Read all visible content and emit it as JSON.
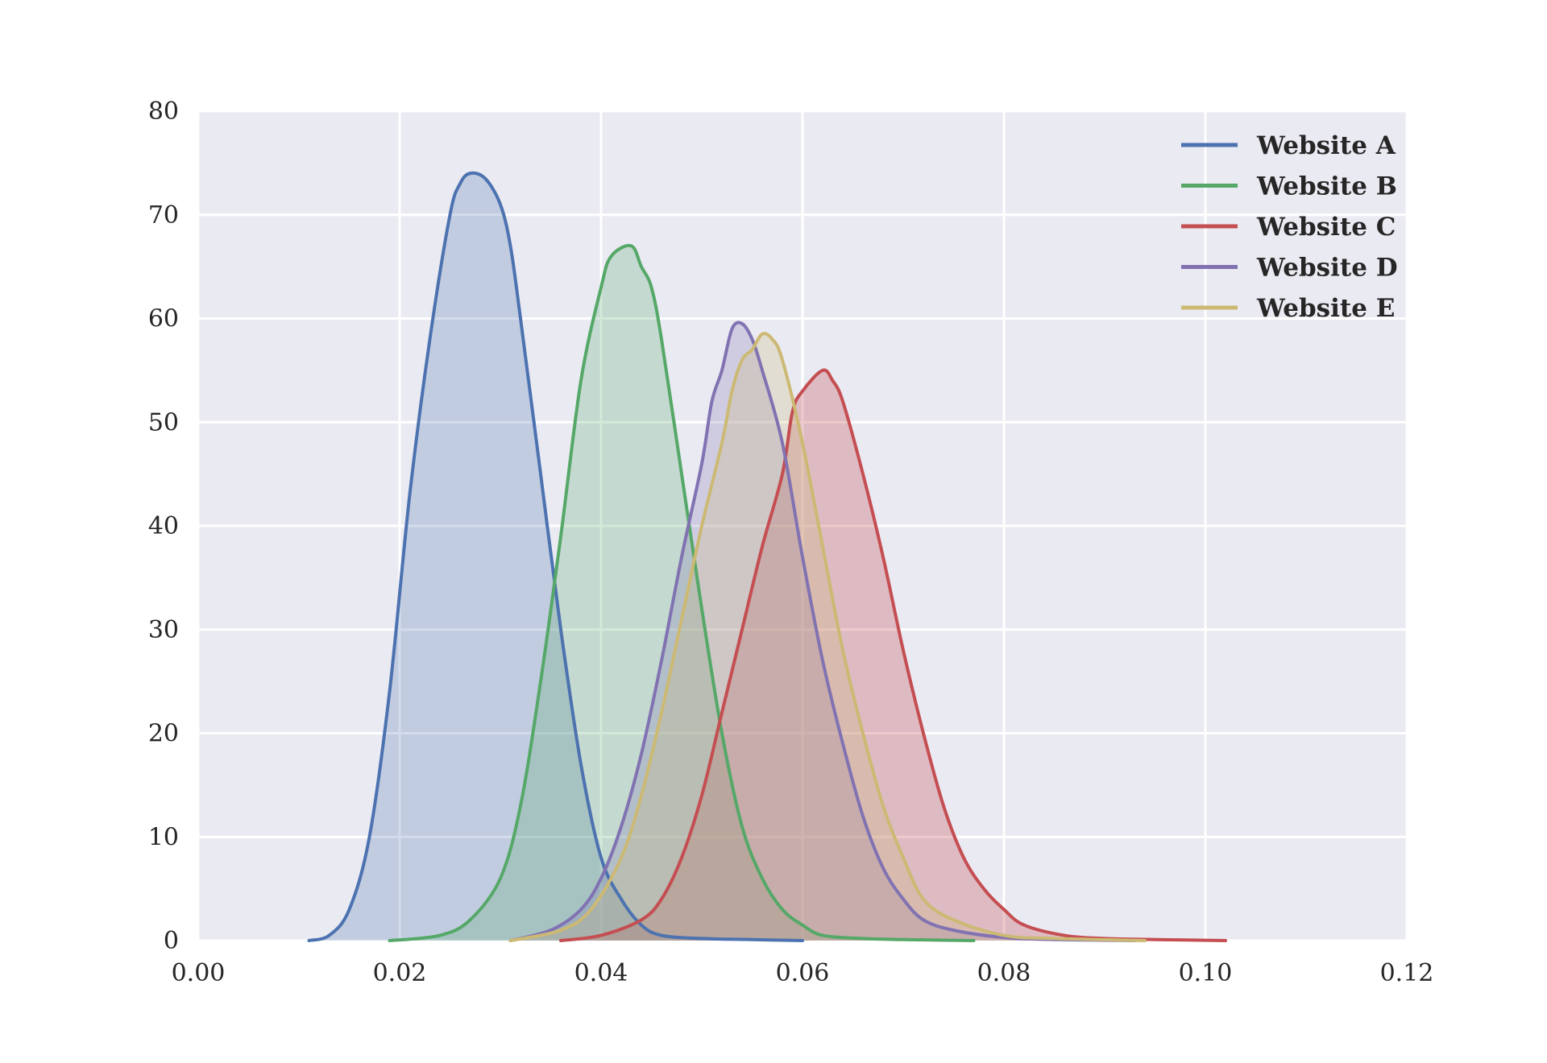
{
  "chart_data": {
    "type": "area",
    "title": "",
    "xlabel": "",
    "ylabel": "",
    "xlim": [
      0.0,
      0.12
    ],
    "ylim": [
      0,
      80
    ],
    "grid": true,
    "style": "seaborn-darkgrid",
    "legend_position": "upper right",
    "x_ticks": [
      "0.00",
      "0.02",
      "0.04",
      "0.06",
      "0.08",
      "0.10",
      "0.12"
    ],
    "y_ticks": [
      "0",
      "10",
      "20",
      "30",
      "40",
      "50",
      "60",
      "70",
      "80"
    ],
    "series": [
      {
        "name": "Website A",
        "color": "#4c72b0",
        "fill": "rgba(76,114,176,0.25)",
        "x": [
          0.011,
          0.013,
          0.015,
          0.017,
          0.019,
          0.021,
          0.023,
          0.025,
          0.026,
          0.027,
          0.0285,
          0.03,
          0.031,
          0.032,
          0.034,
          0.036,
          0.038,
          0.04,
          0.042,
          0.044,
          0.046,
          0.05,
          0.055,
          0.06
        ],
        "y": [
          0,
          0.5,
          3,
          10,
          24,
          43,
          58,
          70,
          73,
          74,
          73.5,
          71,
          67,
          60,
          45,
          30,
          17,
          8,
          4,
          1.5,
          0.5,
          0.2,
          0.1,
          0
        ]
      },
      {
        "name": "Website B",
        "color": "#55a868",
        "fill": "rgba(85,168,104,0.25)",
        "x": [
          0.019,
          0.024,
          0.027,
          0.03,
          0.032,
          0.034,
          0.036,
          0.038,
          0.04,
          0.041,
          0.043,
          0.044,
          0.045,
          0.046,
          0.048,
          0.05,
          0.052,
          0.054,
          0.056,
          0.058,
          0.06,
          0.062,
          0.066,
          0.07,
          0.077
        ],
        "y": [
          0,
          0.5,
          2,
          6,
          13,
          25,
          39,
          54,
          63,
          66,
          67,
          65,
          63,
          58,
          45,
          32,
          20,
          11,
          6,
          3,
          1.5,
          0.5,
          0.2,
          0.1,
          0
        ]
      },
      {
        "name": "Website C",
        "color": "#c44e52",
        "fill": "rgba(196,78,82,0.30)",
        "x": [
          0.036,
          0.04,
          0.044,
          0.046,
          0.048,
          0.05,
          0.052,
          0.054,
          0.056,
          0.058,
          0.059,
          0.06,
          0.062,
          0.063,
          0.064,
          0.066,
          0.068,
          0.07,
          0.072,
          0.074,
          0.076,
          0.078,
          0.08,
          0.082,
          0.086,
          0.09,
          0.095,
          0.102
        ],
        "y": [
          0,
          0.5,
          2,
          4,
          8,
          14,
          22,
          30,
          38,
          45,
          51,
          53,
          55,
          54,
          52,
          45,
          37,
          28,
          20,
          13,
          8,
          5,
          3,
          1.5,
          0.5,
          0.2,
          0.1,
          0
        ]
      },
      {
        "name": "Website D",
        "color": "#8172b2",
        "fill": "rgba(129,114,178,0.25)",
        "x": [
          0.031,
          0.035,
          0.038,
          0.04,
          0.042,
          0.044,
          0.046,
          0.048,
          0.05,
          0.051,
          0.052,
          0.053,
          0.054,
          0.055,
          0.056,
          0.058,
          0.06,
          0.062,
          0.064,
          0.066,
          0.068,
          0.07,
          0.072,
          0.075,
          0.08,
          0.085,
          0.093
        ],
        "y": [
          0,
          1,
          3,
          6,
          11,
          18,
          27,
          37,
          46,
          52,
          55,
          59,
          59.5,
          58,
          55,
          48,
          37,
          27,
          19,
          12,
          7,
          4,
          2,
          1,
          0.3,
          0.1,
          0
        ]
      },
      {
        "name": "Website E",
        "color": "#ccb974",
        "fill": "rgba(204,185,116,0.25)",
        "x": [
          0.031,
          0.036,
          0.039,
          0.042,
          0.044,
          0.046,
          0.048,
          0.05,
          0.052,
          0.053,
          0.054,
          0.055,
          0.056,
          0.057,
          0.058,
          0.06,
          0.062,
          0.064,
          0.066,
          0.068,
          0.07,
          0.072,
          0.075,
          0.08,
          0.085,
          0.094
        ],
        "y": [
          0,
          1,
          3,
          8,
          14,
          22,
          31,
          40,
          48,
          53,
          56,
          57,
          58.5,
          58,
          56,
          48,
          38,
          28,
          20,
          13,
          8,
          4,
          2,
          0.5,
          0.2,
          0
        ]
      }
    ]
  },
  "axes": {
    "x_tick_labels": [
      "0.00",
      "0.02",
      "0.04",
      "0.06",
      "0.08",
      "0.10",
      "0.12"
    ],
    "y_tick_labels": [
      "0",
      "10",
      "20",
      "30",
      "40",
      "50",
      "60",
      "70",
      "80"
    ]
  },
  "legend": {
    "items": [
      {
        "label": "Website A",
        "color": "#4c72b0"
      },
      {
        "label": "Website B",
        "color": "#55a868"
      },
      {
        "label": "Website C",
        "color": "#c44e52"
      },
      {
        "label": "Website D",
        "color": "#8172b2"
      },
      {
        "label": "Website E",
        "color": "#ccb974"
      }
    ]
  },
  "colors": {
    "axes_background": "#eaeaf2",
    "grid": "#ffffff",
    "figure_background": "#ffffff"
  }
}
